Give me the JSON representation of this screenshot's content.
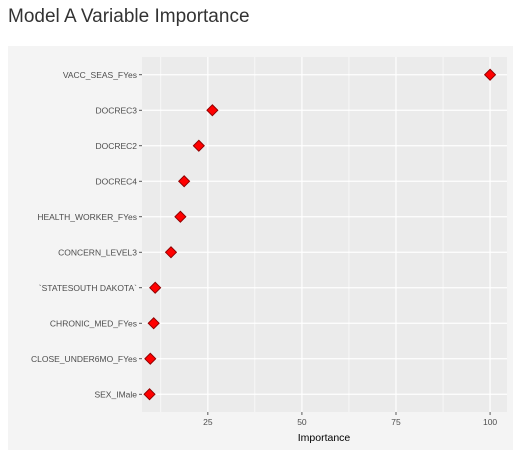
{
  "page": {
    "title": "Model A Variable Importance"
  },
  "chart_data": {
    "type": "scatter",
    "title": "",
    "xlabel": "Importance",
    "ylabel": "",
    "xlim": [
      7.5,
      104.5
    ],
    "xticks": [
      25,
      50,
      75,
      100
    ],
    "grid": true,
    "marker": "diamond",
    "colors": {
      "marker_fill": "#ff0000",
      "marker_edge": "#8b0000",
      "panel_bg": "#ebebeb",
      "grid": "#ffffff"
    },
    "categories": [
      "VACC_SEAS_FYes",
      "DOCREC3",
      "DOCREC2",
      "DOCREC4",
      "HEALTH_WORKER_FYes",
      "CONCERN_LEVEL3",
      "`STATESOUTH DAKOTA`",
      "CHRONIC_MED_FYes",
      "CLOSE_UNDER6MO_FYes",
      "SEX_IMale"
    ],
    "values": [
      100,
      26.2,
      22.6,
      18.7,
      17.7,
      15.2,
      11.0,
      10.6,
      9.7,
      9.5
    ]
  }
}
